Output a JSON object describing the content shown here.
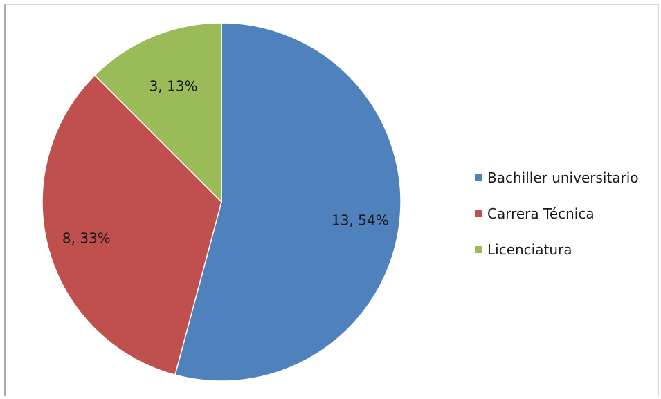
{
  "chart_data": {
    "type": "pie",
    "categories": [
      "Bachiller universitario",
      "Carrera Técnica",
      "Licenciatura"
    ],
    "values": [
      13,
      8,
      3
    ],
    "percentages": [
      54,
      33,
      13
    ],
    "data_labels": [
      "13, 54%",
      "8, 33%",
      "3, 13%"
    ],
    "colors": [
      "#4f81bd",
      "#c0504d",
      "#9bbb59"
    ],
    "start_angle": "12 o'clock, clockwise",
    "legend": "right",
    "title": ""
  }
}
